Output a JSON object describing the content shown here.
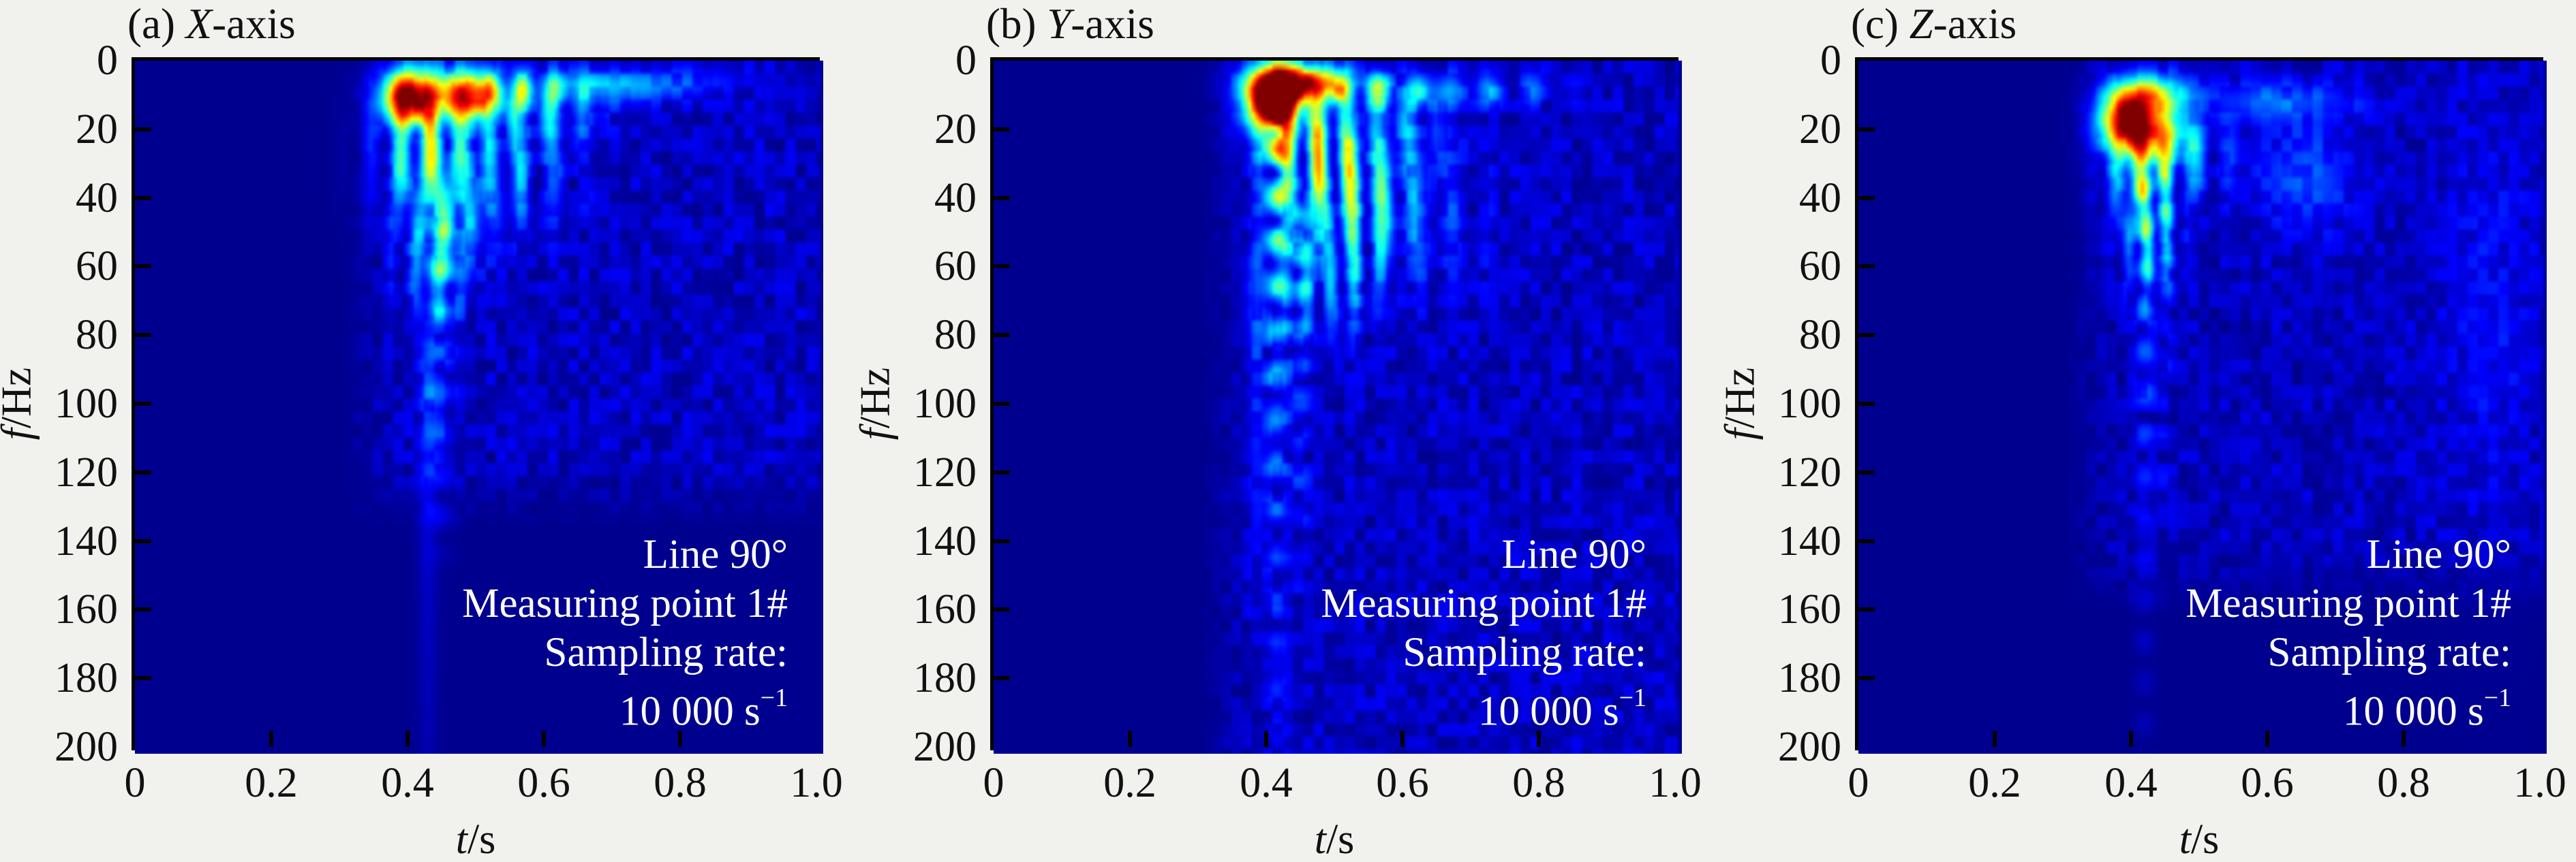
{
  "figure": {
    "background": "#f1f1ee",
    "plot_background": "#06088a",
    "border_color": "#000000",
    "annotation_color": "#ffffff",
    "colormap": "jet"
  },
  "axes": {
    "x": {
      "label_var": "t",
      "label_unit": "/s",
      "range": [
        0,
        1
      ],
      "ticks": [
        0,
        0.2,
        0.4,
        0.6,
        0.8,
        1.0
      ],
      "tick_labels": [
        "0",
        "0.2",
        "0.4",
        "0.6",
        "0.8",
        "1.0"
      ]
    },
    "y": {
      "label_var": "f",
      "label_unit": "/Hz",
      "range": [
        0,
        200
      ],
      "inverted": true,
      "ticks": [
        0,
        20,
        40,
        60,
        80,
        100,
        120,
        140,
        160,
        180,
        200
      ],
      "tick_labels": [
        "0",
        "20",
        "40",
        "60",
        "80",
        "100",
        "120",
        "140",
        "160",
        "180",
        "200"
      ]
    }
  },
  "annotation": {
    "line1": "Line 90°",
    "line2": "Measuring point 1#",
    "line3": "Sampling rate:",
    "line4_base": "10 000 s",
    "line4_sup": "−1"
  },
  "panels": [
    {
      "title_prefix": "(a) ",
      "title_var": "X",
      "title_suffix": "-axis",
      "render": {
        "seed": 1,
        "base": 0.015,
        "features": [
          {
            "type": "g",
            "t": 0.4,
            "f": 10,
            "st": 0.028,
            "sf": 5.5,
            "a": 1.0
          },
          {
            "type": "g",
            "t": 0.485,
            "f": 9.5,
            "st": 0.03,
            "sf": 5.0,
            "a": 0.78
          },
          {
            "type": "g",
            "t": 0.565,
            "f": 8,
            "st": 0.045,
            "sf": 4.0,
            "a": 0.38,
            "p": 0.05
          },
          {
            "type": "g",
            "t": 0.67,
            "f": 7,
            "st": 0.06,
            "sf": 3.5,
            "a": 0.22
          },
          {
            "type": "g",
            "t": 0.8,
            "f": 6,
            "st": 0.06,
            "sf": 3.0,
            "a": 0.12
          },
          {
            "type": "g",
            "t": 0.43,
            "f": 27,
            "st": 0.05,
            "sf": 11,
            "a": 0.55,
            "p": 0.045
          },
          {
            "type": "g",
            "t": 0.45,
            "f": 45,
            "st": 0.045,
            "sf": 10,
            "a": 0.33,
            "p": 0.04
          },
          {
            "type": "g",
            "t": 0.44,
            "f": 62,
            "st": 0.04,
            "sf": 8,
            "a": 0.2,
            "p": 0.035
          },
          {
            "type": "g",
            "t": 0.56,
            "f": 30,
            "st": 0.055,
            "sf": 12,
            "a": 0.24,
            "p": 0.05
          },
          {
            "type": "g",
            "t": 0.6,
            "f": 15,
            "st": 0.05,
            "sf": 6,
            "a": 0.25,
            "p": 0.05
          },
          {
            "type": "v",
            "t": 0.445,
            "w": 0.016,
            "f1": 55,
            "f2": 130,
            "d": 60,
            "a": 0.26,
            "pf": 12
          },
          {
            "type": "v",
            "t": 0.425,
            "w": 0.01,
            "f1": 90,
            "f2": 200,
            "d": 100,
            "a": 0.1
          }
        ],
        "noise": {
          "t0": 0.3,
          "t1": 1.0,
          "f0": 0,
          "f1": 115,
          "a": 0.1,
          "b": 3
        }
      }
    },
    {
      "title_prefix": "(b) ",
      "title_var": "Y",
      "title_suffix": "-axis",
      "render": {
        "seed": 2,
        "base": 0.015,
        "features": [
          {
            "type": "g",
            "t": 0.405,
            "f": 11,
            "st": 0.027,
            "sf": 6.5,
            "a": 1.03
          },
          {
            "type": "g",
            "t": 0.445,
            "f": 6,
            "st": 0.045,
            "sf": 3.5,
            "a": 0.75
          },
          {
            "type": "g",
            "t": 0.56,
            "f": 8,
            "st": 0.07,
            "sf": 3.5,
            "a": 0.45,
            "p": 0.06
          },
          {
            "type": "g",
            "t": 0.72,
            "f": 8,
            "st": 0.08,
            "sf": 3.5,
            "a": 0.22,
            "p": 0.065
          },
          {
            "type": "g",
            "t": 0.47,
            "f": 24,
            "st": 0.05,
            "sf": 11,
            "a": 0.55,
            "p": 0.045
          },
          {
            "type": "g",
            "t": 0.52,
            "f": 40,
            "st": 0.06,
            "sf": 12,
            "a": 0.38,
            "p": 0.045
          },
          {
            "type": "g",
            "t": 0.49,
            "f": 62,
            "st": 0.05,
            "sf": 12,
            "a": 0.28,
            "p": 0.035
          },
          {
            "type": "g",
            "t": 0.62,
            "f": 45,
            "st": 0.07,
            "sf": 15,
            "a": 0.14,
            "p": 0.05
          },
          {
            "type": "g",
            "t": 0.6,
            "f": 20,
            "st": 0.05,
            "sf": 8,
            "a": 0.2,
            "p": 0.05
          },
          {
            "type": "v",
            "t": 0.41,
            "w": 0.012,
            "f1": 16,
            "f2": 200,
            "d": 90,
            "a": 0.55,
            "pf": 13
          },
          {
            "type": "v",
            "t": 0.445,
            "w": 0.012,
            "f1": 50,
            "f2": 140,
            "d": 70,
            "a": 0.24,
            "pf": 11
          },
          {
            "type": "v",
            "t": 0.38,
            "w": 0.008,
            "f1": 60,
            "f2": 160,
            "d": 80,
            "a": 0.12
          }
        ],
        "noise": {
          "t0": 0.3,
          "t1": 1.0,
          "f0": 0,
          "f1": 200,
          "a": 0.1,
          "b": 3
        }
      }
    },
    {
      "title_prefix": "(c) ",
      "title_var": "Z",
      "title_suffix": "-axis",
      "render": {
        "seed": 3,
        "base": 0.015,
        "features": [
          {
            "type": "g",
            "t": 0.39,
            "f": 17,
            "st": 0.028,
            "sf": 6.5,
            "a": 0.88
          },
          {
            "type": "g",
            "t": 0.425,
            "f": 9,
            "st": 0.035,
            "sf": 4.0,
            "a": 0.42
          },
          {
            "type": "g",
            "t": 0.435,
            "f": 21,
            "st": 0.03,
            "sf": 6.0,
            "a": 0.45
          },
          {
            "type": "g",
            "t": 0.49,
            "f": 28,
            "st": 0.04,
            "sf": 8.0,
            "a": 0.26,
            "p": 0.05
          },
          {
            "type": "g",
            "t": 0.41,
            "f": 34,
            "st": 0.035,
            "sf": 9.0,
            "a": 0.38,
            "p": 0.038
          },
          {
            "type": "g",
            "t": 0.42,
            "f": 52,
            "st": 0.032,
            "sf": 10,
            "a": 0.26,
            "p": 0.03
          },
          {
            "type": "g",
            "t": 0.6,
            "f": 11,
            "st": 0.09,
            "sf": 4.0,
            "a": 0.15
          },
          {
            "type": "g",
            "t": 0.65,
            "f": 33,
            "st": 0.05,
            "sf": 12,
            "a": 0.13
          },
          {
            "type": "g",
            "t": 0.92,
            "f": 70,
            "st": 0.05,
            "sf": 45,
            "a": 0.06
          },
          {
            "type": "v",
            "t": 0.415,
            "w": 0.011,
            "f1": 40,
            "f2": 200,
            "d": 75,
            "a": 0.28,
            "pf": 12
          },
          {
            "type": "v",
            "t": 0.445,
            "w": 0.009,
            "f1": 40,
            "f2": 125,
            "d": 60,
            "a": 0.16,
            "pf": 11
          }
        ],
        "noise": {
          "t0": 0.3,
          "t1": 1.0,
          "f0": 0,
          "f1": 140,
          "a": 0.09,
          "b": 3
        }
      }
    }
  ],
  "chart_data": [
    {
      "type": "heatmap",
      "title": "(a) X-axis",
      "xlabel": "t/s",
      "ylabel": "f/Hz",
      "xlim": [
        0,
        1
      ],
      "ylim": [
        0,
        200
      ],
      "y_axis_inverted": true,
      "colormap": "jet",
      "grid": false,
      "x_ticks": [
        0,
        0.2,
        0.4,
        0.6,
        0.8,
        1.0
      ],
      "y_ticks": [
        0,
        20,
        40,
        60,
        80,
        100,
        120,
        140,
        160,
        180,
        200
      ],
      "peak": {
        "t_s": 0.4,
        "f_hz": 10,
        "relative_amplitude": 1.0
      },
      "secondary_peaks": [
        {
          "t_s": 0.49,
          "f_hz": 10,
          "relative_amplitude": 0.78
        }
      ],
      "energy_description": "Dominant burst at t≈0.35–0.60 s below 20 Hz; interference fringes fan down to ≈60 Hz; weak streaks to ≈130 Hz; faint haze for t>0.3 s up to ≈110 Hz",
      "annotations": [
        "Line 90°",
        "Measuring point 1#",
        "Sampling rate:",
        "10 000 s−1"
      ]
    },
    {
      "type": "heatmap",
      "title": "(b) Y-axis",
      "xlabel": "t/s",
      "ylabel": "f/Hz",
      "xlim": [
        0,
        1
      ],
      "ylim": [
        0,
        200
      ],
      "y_axis_inverted": true,
      "colormap": "jet",
      "grid": false,
      "x_ticks": [
        0,
        0.2,
        0.4,
        0.6,
        0.8,
        1.0
      ],
      "y_ticks": [
        0,
        20,
        40,
        60,
        80,
        100,
        120,
        140,
        160,
        180,
        200
      ],
      "peak": {
        "t_s": 0.41,
        "f_hz": 11,
        "relative_amplitude": 1.0
      },
      "secondary_peaks": [
        {
          "t_s": 0.45,
          "f_hz": 6,
          "relative_amplitude": 0.75
        }
      ],
      "energy_description": "Strongest burst at t≈0.40 s, 5–20 Hz; pronounced vertical streak at t≈0.41 s reaching 200 Hz; fringes over 20–70 Hz for t≈0.45–0.65 s; haze over whole band for t>0.3 s",
      "annotations": [
        "Line 90°",
        "Measuring point 1#",
        "Sampling rate:",
        "10 000 s−1"
      ]
    },
    {
      "type": "heatmap",
      "title": "(c) Z-axis",
      "xlabel": "t/s",
      "ylabel": "f/Hz",
      "xlim": [
        0,
        1
      ],
      "ylim": [
        0,
        200
      ],
      "y_axis_inverted": true,
      "colormap": "jet",
      "grid": false,
      "x_ticks": [
        0,
        0.2,
        0.4,
        0.6,
        0.8,
        1.0
      ],
      "y_ticks": [
        0,
        20,
        40,
        60,
        80,
        100,
        120,
        140,
        160,
        180,
        200
      ],
      "peak": {
        "t_s": 0.39,
        "f_hz": 17,
        "relative_amplitude": 1.0
      },
      "secondary_peaks": [
        {
          "t_s": 0.65,
          "f_hz": 33,
          "relative_amplitude": 0.15
        }
      ],
      "energy_description": "Compact burst at t≈0.39 s, 10–25 Hz; fringes to ≈60 Hz; weak streaks at t≈0.42 s down to 200 Hz; faint secondary patch near t≈0.65 s, 30 Hz",
      "annotations": [
        "Line 90°",
        "Measuring point 1#",
        "Sampling rate:",
        "10 000 s−1"
      ]
    }
  ]
}
